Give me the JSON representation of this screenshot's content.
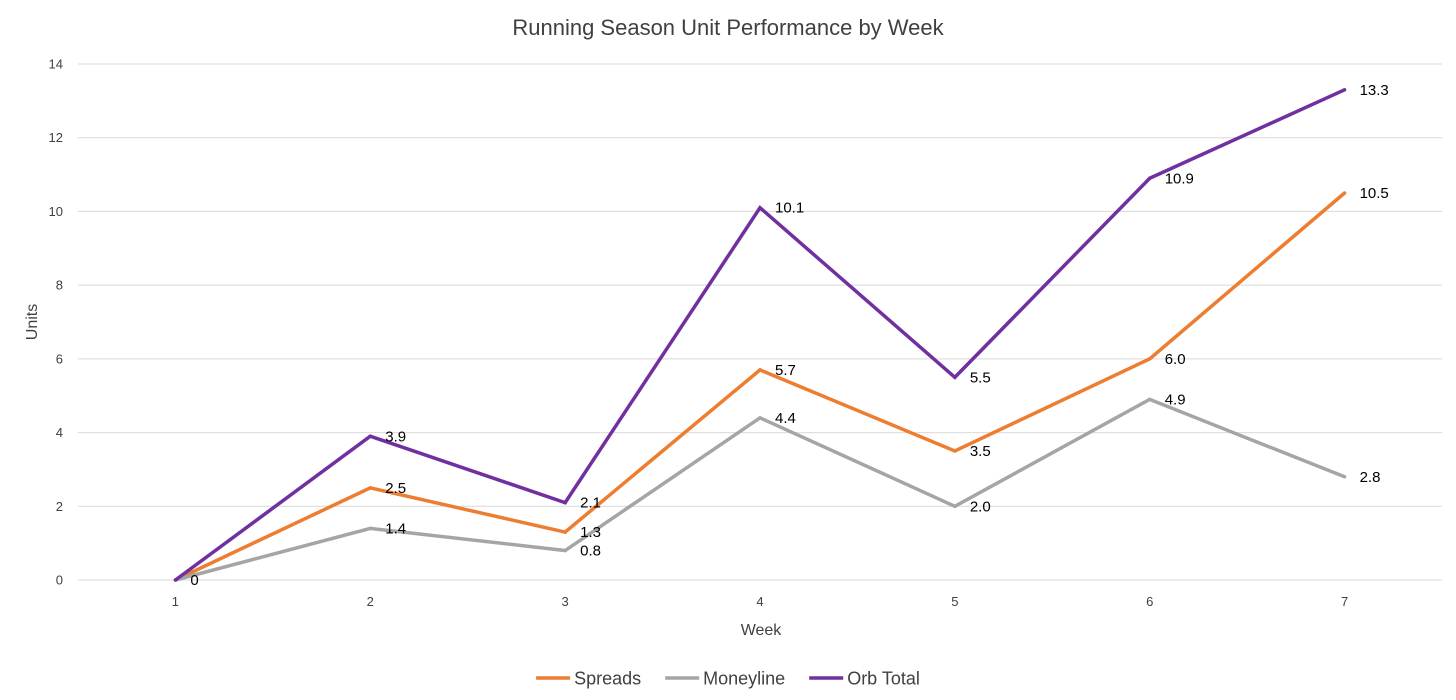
{
  "chart_data": {
    "type": "line",
    "title": "Running Season Unit Performance by Week",
    "xlabel": "Week",
    "ylabel": "Units",
    "categories": [
      "1",
      "2",
      "3",
      "4",
      "5",
      "6",
      "7"
    ],
    "ylim": [
      0,
      14
    ],
    "yticks": [
      "0",
      "2",
      "4",
      "6",
      "8",
      "10",
      "12",
      "14"
    ],
    "grid": true,
    "legend_position": "bottom",
    "series": [
      {
        "name": "Spreads",
        "color": "#ed7d31",
        "values": [
          0,
          2.5,
          1.3,
          5.7,
          3.5,
          6.0,
          10.5
        ],
        "labels": [
          "",
          "2.5",
          "1.3",
          "5.7",
          "3.5",
          "6.0",
          "10.5"
        ]
      },
      {
        "name": "Moneyline",
        "color": "#a5a5a5",
        "values": [
          0,
          1.4,
          0.8,
          4.4,
          2.0,
          4.9,
          2.8
        ],
        "labels": [
          "",
          "1.4",
          "0.8",
          "4.4",
          "2.0",
          "4.9",
          "2.8"
        ]
      },
      {
        "name": "Orb Total",
        "color": "#7030a0",
        "values": [
          0,
          3.9,
          2.1,
          10.1,
          5.5,
          10.9,
          13.3
        ],
        "labels": [
          "0",
          "3.9",
          "2.1",
          "10.1",
          "5.5",
          "10.9",
          "13.3"
        ]
      }
    ]
  }
}
